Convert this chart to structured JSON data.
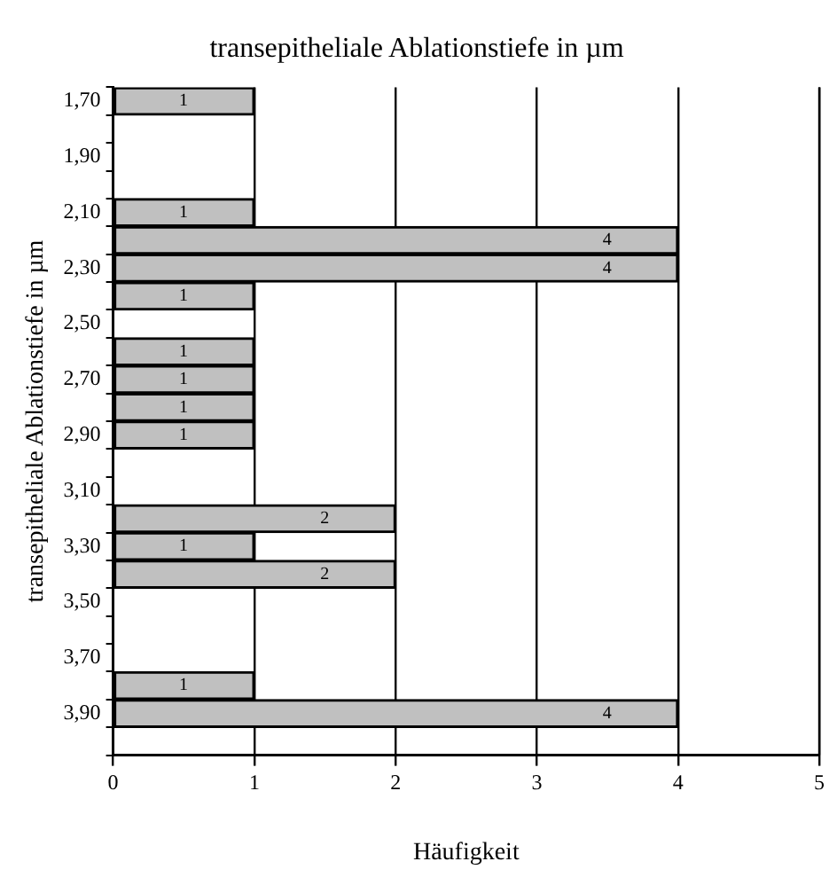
{
  "chart_data": {
    "type": "bar",
    "orientation": "horizontal",
    "title": "transepitheliale Ablationstiefe in µm",
    "xlabel": "Häufigkeit",
    "ylabel": "transepitheliale Ablationstiefe in µm",
    "categories": [
      "1,70",
      null,
      "1,90",
      null,
      "2,10",
      null,
      "2,30",
      null,
      "2,50",
      null,
      "2,70",
      null,
      "2,90",
      null,
      "3,10",
      null,
      "3,30",
      null,
      "3,50",
      null,
      "3,70",
      null,
      "3,90",
      null
    ],
    "values": [
      1,
      null,
      null,
      null,
      1,
      4,
      4,
      1,
      null,
      1,
      1,
      1,
      1,
      null,
      null,
      2,
      1,
      2,
      null,
      null,
      null,
      1,
      4,
      null
    ],
    "color": "#c0c0c0",
    "xlim": [
      0,
      5
    ],
    "xticks": [
      0,
      1,
      2,
      3,
      4,
      5
    ],
    "grid": "x",
    "legend": false,
    "data_labels": true
  }
}
